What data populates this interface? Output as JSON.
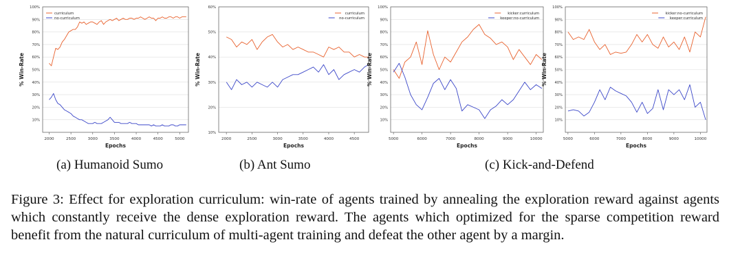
{
  "figure": {
    "caption": "Figure 3: Effect for exploration curriculum: win-rate of agents trained by annealing the exploration reward against agents which constantly receive the dense exploration reward. The agents which optimized for the sparse competition reward benefit from the natural curriculum of multi-agent training and defeat the other agent by a margin."
  },
  "subplots": [
    {
      "label": "(a) Humanoid Sumo"
    },
    {
      "label": "(b) Ant Sumo"
    },
    {
      "label": "(c) Kick-and-Defend"
    }
  ],
  "colors": {
    "red": "#e8602c",
    "blue": "#3a46c8",
    "axis": "#555555",
    "grid": "#dddddd"
  },
  "chart_data": [
    {
      "type": "line",
      "xlabel": "Epochs",
      "ylabel": "% Win-Rate",
      "xlim": [
        1850,
        5200
      ],
      "ylim": [
        0,
        100
      ],
      "xticks": [
        2000,
        2500,
        3000,
        3500,
        4000,
        4500,
        5000
      ],
      "yticks": [
        10,
        20,
        30,
        40,
        50,
        60,
        70,
        80,
        90,
        100
      ],
      "ytick_labels": [
        "10%",
        "20%",
        "30%",
        "40%",
        "50%",
        "60%",
        "70%",
        "80%",
        "90%",
        "100%"
      ],
      "legend_position": "top-left",
      "series": [
        {
          "name": "curriculum",
          "color": "#e8602c",
          "x": [
            2000,
            2050,
            2100,
            2150,
            2200,
            2250,
            2300,
            2350,
            2400,
            2450,
            2500,
            2550,
            2600,
            2650,
            2700,
            2750,
            2800,
            2850,
            2900,
            2950,
            3000,
            3050,
            3100,
            3150,
            3200,
            3250,
            3300,
            3350,
            3400,
            3450,
            3500,
            3550,
            3600,
            3650,
            3700,
            3750,
            3800,
            3850,
            3900,
            3950,
            4000,
            4050,
            4100,
            4150,
            4200,
            4250,
            4300,
            4350,
            4400,
            4450,
            4500,
            4550,
            4600,
            4650,
            4700,
            4750,
            4800,
            4850,
            4900,
            4950,
            5000,
            5050,
            5100,
            5150
          ],
          "y": [
            55,
            53,
            60,
            67,
            66,
            68,
            72,
            74,
            77,
            80,
            81,
            82,
            82,
            84,
            88,
            87,
            88,
            86,
            87,
            88,
            88,
            87,
            86,
            88,
            89,
            86,
            88,
            89,
            90,
            89,
            90,
            91,
            89,
            90,
            91,
            90,
            90,
            91,
            91,
            90,
            91,
            91,
            92,
            91,
            90,
            91,
            92,
            91,
            91,
            89,
            91,
            91,
            92,
            91,
            91,
            92,
            92,
            91,
            92,
            92,
            91,
            92,
            92,
            92
          ]
        },
        {
          "name": "no-curriculum",
          "color": "#3a46c8",
          "x": [
            2000,
            2050,
            2100,
            2150,
            2200,
            2250,
            2300,
            2350,
            2400,
            2450,
            2500,
            2550,
            2600,
            2650,
            2700,
            2750,
            2800,
            2850,
            2900,
            2950,
            3000,
            3050,
            3100,
            3150,
            3200,
            3250,
            3300,
            3350,
            3400,
            3450,
            3500,
            3550,
            3600,
            3650,
            3700,
            3750,
            3800,
            3850,
            3900,
            3950,
            4000,
            4050,
            4100,
            4150,
            4200,
            4250,
            4300,
            4350,
            4400,
            4450,
            4500,
            4550,
            4600,
            4650,
            4700,
            4750,
            4800,
            4850,
            4900,
            4950,
            5000,
            5050,
            5100,
            5150
          ],
          "y": [
            26,
            28,
            31,
            26,
            23,
            22,
            20,
            18,
            17,
            16,
            15,
            13,
            12,
            11,
            10,
            10,
            9,
            8,
            7,
            7,
            7,
            8,
            7,
            7,
            7,
            8,
            9,
            10,
            12,
            10,
            8,
            8,
            8,
            7,
            7,
            7,
            7,
            8,
            7,
            7,
            7,
            6,
            6,
            6,
            6,
            6,
            6,
            5,
            6,
            5,
            5,
            5,
            6,
            5,
            5,
            5,
            6,
            6,
            5,
            5,
            6,
            6,
            6,
            6
          ]
        }
      ]
    },
    {
      "type": "line",
      "xlabel": "Epochs",
      "ylabel": "% Win-Rate",
      "xlim": [
        1850,
        4780
      ],
      "ylim": [
        10,
        60
      ],
      "xticks": [
        2000,
        2500,
        3000,
        3500,
        4000,
        4500
      ],
      "yticks": [
        10,
        20,
        30,
        40,
        50,
        60
      ],
      "ytick_labels": [
        "10%",
        "20%",
        "30%",
        "40%",
        "50%",
        "60%"
      ],
      "legend_position": "top-right",
      "series": [
        {
          "name": "curriculum",
          "color": "#e8602c",
          "x": [
            2000,
            2100,
            2200,
            2300,
            2400,
            2500,
            2600,
            2700,
            2800,
            2900,
            3000,
            3100,
            3200,
            3300,
            3400,
            3500,
            3600,
            3700,
            3800,
            3900,
            4000,
            4100,
            4200,
            4300,
            4400,
            4500,
            4600,
            4700,
            4780
          ],
          "y": [
            48,
            47,
            44,
            46,
            45,
            47,
            43,
            46,
            48,
            49,
            46,
            44,
            45,
            43,
            44,
            43,
            42,
            42,
            41,
            40,
            44,
            43,
            44,
            42,
            42,
            40,
            41,
            40,
            40
          ]
        },
        {
          "name": "no-curriculum",
          "color": "#3a46c8",
          "x": [
            2000,
            2100,
            2200,
            2300,
            2400,
            2500,
            2600,
            2700,
            2800,
            2900,
            3000,
            3100,
            3200,
            3300,
            3400,
            3500,
            3600,
            3700,
            3800,
            3900,
            4000,
            4100,
            4200,
            4300,
            4400,
            4500,
            4600,
            4700,
            4780
          ],
          "y": [
            30,
            27,
            31,
            29,
            30,
            28,
            30,
            29,
            28,
            30,
            28,
            31,
            32,
            33,
            33,
            34,
            35,
            36,
            34,
            37,
            33,
            35,
            31,
            33,
            34,
            35,
            34,
            36,
            37
          ]
        }
      ]
    },
    {
      "type": "line",
      "xlabel": "Epochs",
      "ylabel": "% Win-Rate",
      "xlim": [
        4900,
        10250
      ],
      "ylim": [
        0,
        100
      ],
      "xticks": [
        5000,
        6000,
        7000,
        8000,
        9000,
        10000
      ],
      "yticks": [
        10,
        20,
        30,
        40,
        50,
        60,
        70,
        80,
        90,
        100
      ],
      "ytick_labels": [
        "10%",
        "20%",
        "30%",
        "40%",
        "50%",
        "60%",
        "70%",
        "80%",
        "90%",
        "100%"
      ],
      "legend_position": "top-right",
      "series": [
        {
          "name": "kicker:curriculum",
          "color": "#e8602c",
          "x": [
            5000,
            5200,
            5400,
            5600,
            5800,
            6000,
            6200,
            6400,
            6600,
            6800,
            7000,
            7200,
            7400,
            7600,
            7800,
            8000,
            8200,
            8400,
            8600,
            8800,
            9000,
            9200,
            9400,
            9600,
            9800,
            10000,
            10200
          ],
          "y": [
            50,
            43,
            56,
            60,
            72,
            54,
            81,
            62,
            50,
            60,
            56,
            64,
            72,
            76,
            82,
            86,
            78,
            75,
            70,
            72,
            68,
            58,
            66,
            60,
            54,
            62,
            58
          ]
        },
        {
          "name": "keeper:no-curriculum",
          "color": "#3a46c8",
          "x": [
            5000,
            5200,
            5400,
            5600,
            5800,
            6000,
            6200,
            6400,
            6600,
            6800,
            7000,
            7200,
            7400,
            7600,
            7800,
            8000,
            8200,
            8400,
            8600,
            8800,
            9000,
            9200,
            9400,
            9600,
            9800,
            10000,
            10200
          ],
          "y": [
            48,
            55,
            44,
            30,
            22,
            18,
            28,
            39,
            43,
            34,
            42,
            35,
            17,
            22,
            20,
            18,
            11,
            18,
            21,
            26,
            22,
            26,
            33,
            40,
            34,
            38,
            35
          ]
        }
      ]
    },
    {
      "type": "line",
      "xlabel": "Epochs",
      "ylabel": "% Win-Rate",
      "xlim": [
        4900,
        10250
      ],
      "ylim": [
        0,
        100
      ],
      "xticks": [
        5000,
        6000,
        7000,
        8000,
        9000,
        10000
      ],
      "yticks": [
        10,
        20,
        30,
        40,
        50,
        60,
        70,
        80,
        90,
        100
      ],
      "ytick_labels": [
        "10%",
        "20%",
        "30%",
        "40%",
        "50%",
        "60%",
        "70%",
        "80%",
        "90%",
        "100%"
      ],
      "legend_position": "top-right",
      "series": [
        {
          "name": "kicker:no-curriculum",
          "color": "#e8602c",
          "x": [
            5000,
            5200,
            5400,
            5600,
            5800,
            6000,
            6200,
            6400,
            6600,
            6800,
            7000,
            7200,
            7400,
            7600,
            7800,
            8000,
            8200,
            8400,
            8600,
            8800,
            9000,
            9200,
            9400,
            9600,
            9800,
            10000,
            10200
          ],
          "y": [
            80,
            74,
            76,
            74,
            82,
            72,
            66,
            70,
            62,
            64,
            63,
            64,
            70,
            78,
            72,
            78,
            70,
            67,
            76,
            68,
            72,
            66,
            76,
            64,
            80,
            76,
            92
          ]
        },
        {
          "name": "keeper:curriculum",
          "color": "#3a46c8",
          "x": [
            5000,
            5200,
            5400,
            5600,
            5800,
            6000,
            6200,
            6400,
            6600,
            6800,
            7000,
            7200,
            7400,
            7600,
            7800,
            8000,
            8200,
            8400,
            8600,
            8800,
            9000,
            9200,
            9400,
            9600,
            9800,
            10000,
            10200
          ],
          "y": [
            17,
            18,
            17,
            13,
            16,
            24,
            34,
            26,
            36,
            33,
            31,
            29,
            24,
            16,
            24,
            15,
            19,
            34,
            18,
            34,
            30,
            34,
            26,
            38,
            20,
            24,
            10
          ]
        }
      ]
    }
  ]
}
